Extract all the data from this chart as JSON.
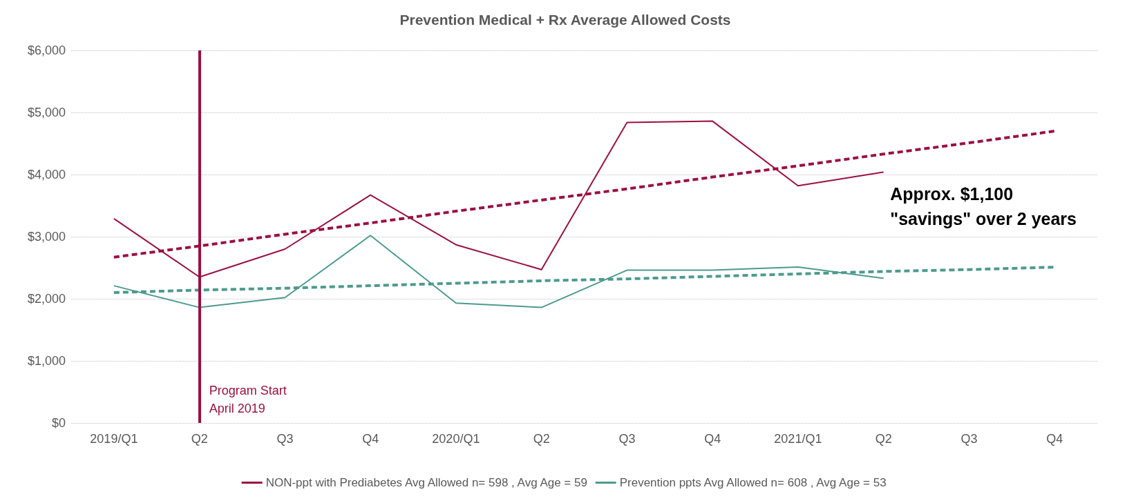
{
  "chart_data": {
    "type": "line",
    "title": "Prevention Medical + Rx Average Allowed Costs",
    "categories": [
      "2019/Q1",
      "Q2",
      "Q3",
      "Q4",
      "2020/Q1",
      "Q2",
      "Q3",
      "Q4",
      "2021/Q1",
      "Q2",
      "Q3",
      "Q4"
    ],
    "series": [
      {
        "name": "NON-ppt with Prediabetes Avg Allowed n= 598 , Avg Age = 59",
        "color": "#9b1040",
        "values": [
          3290,
          2350,
          2800,
          3670,
          2870,
          2470,
          4840,
          4860,
          3820,
          4040,
          null,
          null
        ],
        "line_style": "solid"
      },
      {
        "name": "Prevention ppts Avg Allowed n= 608 , Avg Age = 53",
        "color": "#4c9a8e",
        "values": [
          2210,
          1860,
          2020,
          3020,
          1930,
          1860,
          2460,
          2460,
          2510,
          2330,
          null,
          null
        ],
        "line_style": "solid"
      },
      {
        "color": "#9b1040",
        "values": [
          2670,
          2850,
          3040,
          3220,
          3410,
          3590,
          3770,
          3960,
          4140,
          4330,
          4510,
          4700
        ],
        "line_style": "dashed"
      },
      {
        "color": "#4c9a8e",
        "values": [
          2100,
          2140,
          2170,
          2210,
          2250,
          2290,
          2320,
          2360,
          2400,
          2440,
          2470,
          2510
        ],
        "line_style": "dashed"
      }
    ],
    "ylim": [
      0,
      6000
    ],
    "yticks": [
      {
        "value": 0,
        "label": "$0"
      },
      {
        "value": 1000,
        "label": "$1,000"
      },
      {
        "value": 2000,
        "label": "$2,000"
      },
      {
        "value": 3000,
        "label": "$3,000"
      },
      {
        "value": 4000,
        "label": "$4,000"
      },
      {
        "value": 5000,
        "label": "$5,000"
      },
      {
        "value": 6000,
        "label": "$6,000"
      }
    ],
    "ref_lines": [
      {
        "axis": "x",
        "value": "Q2",
        "label": "Program Start\nApril 2019",
        "color": "#9b1040"
      }
    ],
    "annotations": [
      "Approx. $1,100\n\"savings\" over 2 years"
    ],
    "grid": "y",
    "legend": "bottom",
    "marker": "none"
  }
}
